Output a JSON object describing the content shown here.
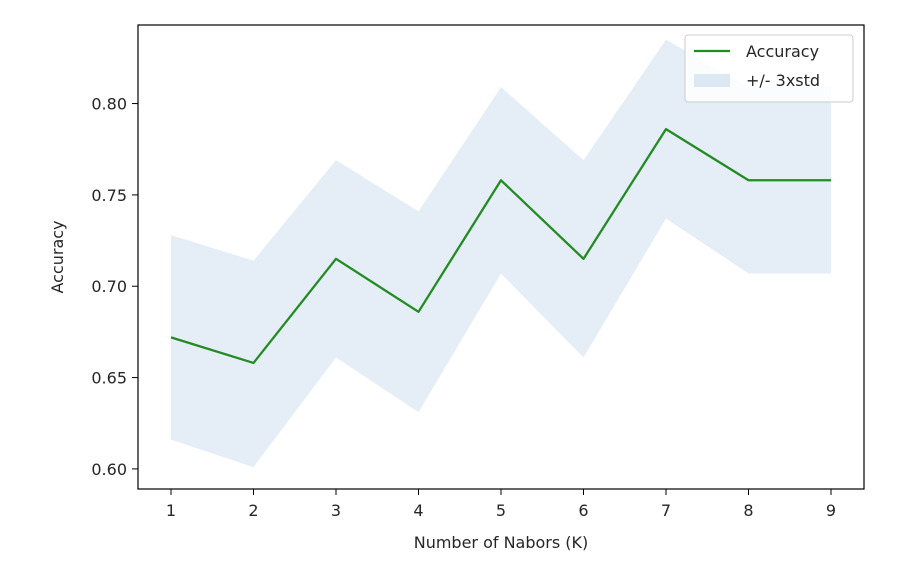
{
  "chart_data": {
    "type": "line",
    "title": "",
    "xlabel": "Number of Nabors (K)",
    "ylabel": "Accuracy",
    "x": [
      1,
      2,
      3,
      4,
      5,
      6,
      7,
      8,
      9
    ],
    "xlim": [
      0.6,
      9.4
    ],
    "ylim": [
      0.589,
      0.843
    ],
    "xticks": [
      1,
      2,
      3,
      4,
      5,
      6,
      7,
      8,
      9
    ],
    "xtick_labels": [
      "1",
      "2",
      "3",
      "4",
      "5",
      "6",
      "7",
      "8",
      "9"
    ],
    "yticks": [
      0.6,
      0.65,
      0.7,
      0.75,
      0.8
    ],
    "ytick_labels": [
      "0.60",
      "0.65",
      "0.70",
      "0.75",
      "0.80"
    ],
    "grid": false,
    "legend_position": "top-right",
    "series": [
      {
        "name": "Accuracy",
        "kind": "line",
        "color": "#228b22",
        "values": [
          0.672,
          0.658,
          0.715,
          0.686,
          0.758,
          0.715,
          0.786,
          0.758,
          0.758
        ]
      },
      {
        "name": "+/- 3xstd",
        "kind": "band",
        "color": "#dce8f4",
        "lower": [
          0.616,
          0.601,
          0.661,
          0.631,
          0.707,
          0.661,
          0.737,
          0.707,
          0.707
        ],
        "upper": [
          0.728,
          0.714,
          0.769,
          0.741,
          0.809,
          0.769,
          0.835,
          0.809,
          0.809
        ]
      }
    ]
  }
}
